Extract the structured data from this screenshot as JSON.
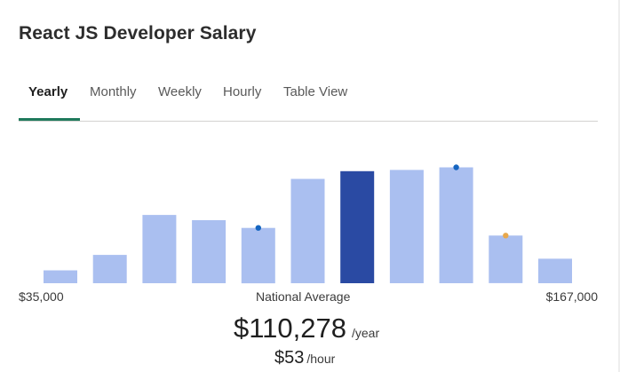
{
  "title": "React JS Developer Salary",
  "tabs": [
    {
      "label": "Yearly",
      "active": true
    },
    {
      "label": "Monthly",
      "active": false
    },
    {
      "label": "Weekly",
      "active": false
    },
    {
      "label": "Hourly",
      "active": false
    },
    {
      "label": "Table View",
      "active": false
    }
  ],
  "range": {
    "low_label": "$35,000",
    "mid_label": "National Average",
    "high_label": "$167,000"
  },
  "average": {
    "yearly_amount": "$110,278",
    "yearly_unit": "/year",
    "hourly_amount": "$53",
    "hourly_unit": "/hour"
  },
  "colors": {
    "bar": "#aabff0",
    "bar_highlight": "#2a4aa3",
    "marker_blue": "#1565c0",
    "marker_orange": "#e8a84c",
    "tab_underline": "#1f7a5c"
  },
  "chart_data": {
    "type": "bar",
    "title": "",
    "xlabel": "",
    "ylabel": "",
    "x_range": [
      35000,
      167000
    ],
    "values": [
      10,
      22,
      53,
      49,
      43,
      81,
      87,
      88,
      90,
      37,
      19
    ],
    "highlight_index": 6,
    "markers": [
      {
        "bar_index": 4,
        "color": "blue"
      },
      {
        "bar_index": 8,
        "color": "blue"
      },
      {
        "bar_index": 9,
        "color": "orange"
      }
    ]
  }
}
